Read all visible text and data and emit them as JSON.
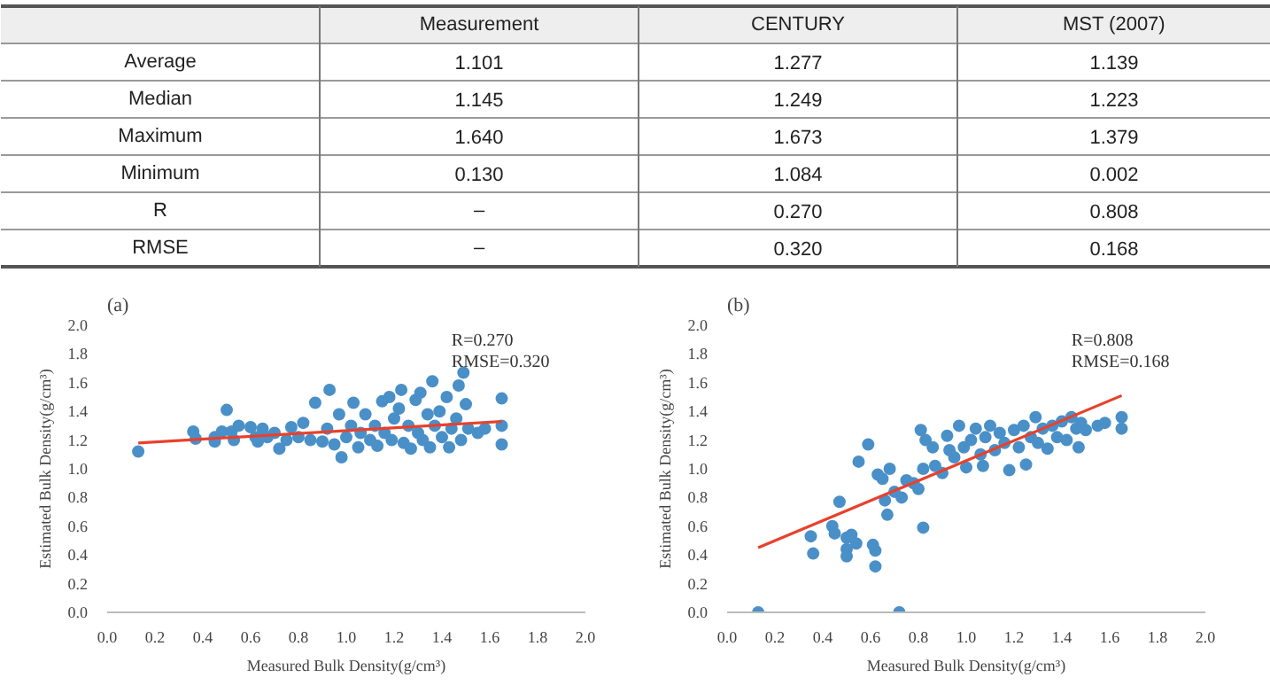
{
  "chart_data": [
    {
      "type": "other",
      "categories": [
        "Measurement",
        "CENTURY",
        "MST (2007)"
      ],
      "y_categories": [
        "Average",
        "Median",
        "Maximum",
        "Minimum",
        "R",
        "RMSE"
      ],
      "cell_labels": [
        [
          "1.101",
          "1.277",
          "1.139"
        ],
        [
          "1.145",
          "1.249",
          "1.223"
        ],
        [
          "1.640",
          "1.673",
          "1.379"
        ],
        [
          "0.130",
          "1.084",
          "0.002"
        ],
        [
          "–",
          "0.270",
          "0.808"
        ],
        [
          "–",
          "0.320",
          "0.168"
        ]
      ]
    },
    {
      "type": "scatter",
      "title": "(a)",
      "xlabel": "Measured Bulk Density(g/cm³)",
      "ylabel": "Estimated Bulk Density(g/cm³)",
      "annotations": [
        "R=0.270",
        "RMSE=0.320"
      ],
      "xlim": [
        0,
        2
      ],
      "ylim": [
        0,
        2
      ],
      "xticks": [
        {
          "value": 0,
          "label": "0.0"
        },
        {
          "value": 0.2,
          "label": "0.2"
        },
        {
          "value": 0.4,
          "label": "0.4"
        },
        {
          "value": 0.6,
          "label": "0.6"
        },
        {
          "value": 0.8,
          "label": "0.8"
        },
        {
          "value": 1,
          "label": "1.0"
        },
        {
          "value": 1.2,
          "label": "1.2"
        },
        {
          "value": 1.4,
          "label": "1.4"
        },
        {
          "value": 1.6,
          "label": "1.6"
        },
        {
          "value": 1.8,
          "label": "1.8"
        },
        {
          "value": 2,
          "label": "2.0"
        }
      ],
      "yticks": [
        {
          "value": 0,
          "label": "0.0"
        },
        {
          "value": 0.2,
          "label": "0.2"
        },
        {
          "value": 0.4,
          "label": "0.4"
        },
        {
          "value": 0.6,
          "label": "0.6"
        },
        {
          "value": 0.8,
          "label": "0.8"
        },
        {
          "value": 1,
          "label": "1.0"
        },
        {
          "value": 1.2,
          "label": "1.2"
        },
        {
          "value": 1.4,
          "label": "1.4"
        },
        {
          "value": 1.6,
          "label": "1.6"
        },
        {
          "value": 1.8,
          "label": "1.8"
        },
        {
          "value": 2,
          "label": "2.0"
        }
      ],
      "grid": false,
      "series": [
        {
          "type": "scatter",
          "marker": "circle",
          "color": "#4a90c8",
          "x": [
            0.13,
            0.36,
            0.37,
            0.45,
            0.45,
            0.48,
            0.5,
            0.52,
            0.53,
            0.55,
            0.6,
            0.62,
            0.63,
            0.65,
            0.67,
            0.7,
            0.72,
            0.75,
            0.77,
            0.8,
            0.82,
            0.85,
            0.87,
            0.9,
            0.92,
            0.93,
            0.95,
            0.97,
            0.98,
            1.0,
            1.02,
            1.03,
            1.05,
            1.06,
            1.08,
            1.1,
            1.12,
            1.13,
            1.15,
            1.16,
            1.18,
            1.19,
            1.2,
            1.22,
            1.23,
            1.24,
            1.26,
            1.27,
            1.29,
            1.3,
            1.31,
            1.32,
            1.34,
            1.35,
            1.36,
            1.37,
            1.39,
            1.4,
            1.42,
            1.43,
            1.44,
            1.46,
            1.47,
            1.48,
            1.49,
            1.5,
            1.51,
            1.55,
            1.58,
            1.65,
            1.65,
            1.65
          ],
          "values": [
            1.12,
            1.26,
            1.21,
            1.22,
            1.19,
            1.26,
            1.41,
            1.26,
            1.2,
            1.3,
            1.29,
            1.22,
            1.19,
            1.28,
            1.22,
            1.25,
            1.14,
            1.2,
            1.29,
            1.22,
            1.32,
            1.2,
            1.46,
            1.19,
            1.28,
            1.55,
            1.17,
            1.38,
            1.08,
            1.22,
            1.3,
            1.46,
            1.15,
            1.25,
            1.38,
            1.2,
            1.3,
            1.16,
            1.47,
            1.25,
            1.5,
            1.2,
            1.35,
            1.42,
            1.55,
            1.18,
            1.3,
            1.14,
            1.48,
            1.25,
            1.53,
            1.2,
            1.38,
            1.15,
            1.61,
            1.3,
            1.4,
            1.22,
            1.5,
            1.15,
            1.28,
            1.35,
            1.58,
            1.2,
            1.67,
            1.45,
            1.28,
            1.25,
            1.28,
            1.49,
            1.3,
            1.17
          ]
        },
        {
          "type": "line",
          "color": "#e8412c",
          "x": [
            0.13,
            1.65
          ],
          "values": [
            1.18,
            1.33
          ]
        }
      ]
    },
    {
      "type": "scatter",
      "title": "(b)",
      "xlabel": "Measured Bulk Density(g/cm³)",
      "ylabel": "Estimated Bulk Density(g/cm³)",
      "annotations": [
        "R=0.808",
        "RMSE=0.168"
      ],
      "xlim": [
        0,
        2
      ],
      "ylim": [
        0,
        2
      ],
      "xticks": [
        {
          "value": 0,
          "label": "0.0"
        },
        {
          "value": 0.2,
          "label": "0.2"
        },
        {
          "value": 0.4,
          "label": "0.4"
        },
        {
          "value": 0.6,
          "label": "0.6"
        },
        {
          "value": 0.8,
          "label": "0.8"
        },
        {
          "value": 1,
          "label": "1.0"
        },
        {
          "value": 1.2,
          "label": "1.2"
        },
        {
          "value": 1.4,
          "label": "1.4"
        },
        {
          "value": 1.6,
          "label": "1.6"
        },
        {
          "value": 1.8,
          "label": "1.8"
        },
        {
          "value": 2,
          "label": "2.0"
        }
      ],
      "yticks": [
        {
          "value": 0,
          "label": "0.0"
        },
        {
          "value": 0.2,
          "label": "0.2"
        },
        {
          "value": 0.4,
          "label": "0.4"
        },
        {
          "value": 0.6,
          "label": "0.6"
        },
        {
          "value": 0.8,
          "label": "0.8"
        },
        {
          "value": 1,
          "label": "1.0"
        },
        {
          "value": 1.2,
          "label": "1.2"
        },
        {
          "value": 1.4,
          "label": "1.4"
        },
        {
          "value": 1.6,
          "label": "1.6"
        },
        {
          "value": 1.8,
          "label": "1.8"
        },
        {
          "value": 2,
          "label": "2.0"
        }
      ],
      "grid": false,
      "series": [
        {
          "type": "scatter",
          "marker": "circle",
          "color": "#4a90c8",
          "x": [
            0.13,
            0.35,
            0.36,
            0.44,
            0.45,
            0.47,
            0.5,
            0.5,
            0.5,
            0.52,
            0.54,
            0.55,
            0.59,
            0.61,
            0.62,
            0.62,
            0.63,
            0.65,
            0.66,
            0.67,
            0.68,
            0.7,
            0.72,
            0.73,
            0.75,
            0.78,
            0.8,
            0.81,
            0.82,
            0.82,
            0.83,
            0.86,
            0.87,
            0.9,
            0.92,
            0.93,
            0.95,
            0.97,
            0.99,
            1.0,
            1.02,
            1.04,
            1.06,
            1.07,
            1.08,
            1.1,
            1.12,
            1.14,
            1.16,
            1.18,
            1.2,
            1.22,
            1.24,
            1.25,
            1.27,
            1.29,
            1.3,
            1.32,
            1.34,
            1.36,
            1.38,
            1.4,
            1.42,
            1.44,
            1.46,
            1.47,
            1.48,
            1.5,
            1.55,
            1.58,
            1.65,
            1.65
          ],
          "values": [
            0.0,
            0.53,
            0.41,
            0.6,
            0.55,
            0.77,
            0.52,
            0.44,
            0.39,
            0.54,
            0.48,
            1.05,
            1.17,
            0.47,
            0.32,
            0.43,
            0.96,
            0.93,
            0.78,
            0.68,
            1.0,
            0.84,
            0.0,
            0.8,
            0.92,
            0.9,
            0.86,
            1.27,
            0.59,
            1.0,
            1.2,
            1.15,
            1.02,
            0.97,
            1.23,
            1.13,
            1.08,
            1.3,
            1.15,
            1.01,
            1.2,
            1.28,
            1.1,
            1.02,
            1.22,
            1.3,
            1.13,
            1.25,
            1.18,
            0.99,
            1.27,
            1.15,
            1.3,
            1.03,
            1.22,
            1.36,
            1.18,
            1.28,
            1.14,
            1.3,
            1.22,
            1.33,
            1.2,
            1.36,
            1.28,
            1.15,
            1.32,
            1.27,
            1.3,
            1.32,
            1.36,
            1.28
          ]
        },
        {
          "type": "line",
          "color": "#e8412c",
          "x": [
            0.13,
            1.65
          ],
          "values": [
            0.45,
            1.51
          ]
        }
      ]
    }
  ]
}
